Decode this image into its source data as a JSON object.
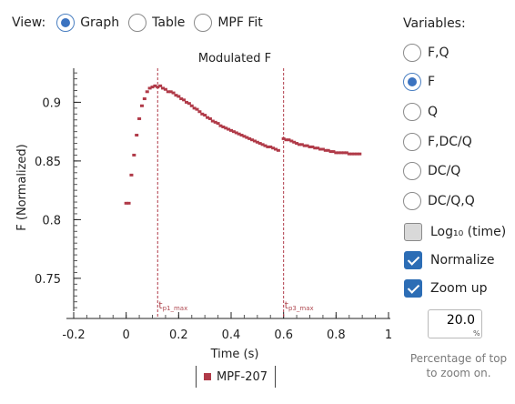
{
  "view": {
    "label": "View:",
    "options": [
      {
        "label": "Graph",
        "selected": true
      },
      {
        "label": "Table",
        "selected": false
      },
      {
        "label": "MPF Fit",
        "selected": false
      }
    ]
  },
  "variables": {
    "title": "Variables:",
    "radios": [
      {
        "label": "F,Q",
        "selected": false
      },
      {
        "label": "F",
        "selected": true
      },
      {
        "label": "Q",
        "selected": false
      },
      {
        "label": "F,DC/Q",
        "selected": false
      },
      {
        "label": "DC/Q",
        "selected": false
      },
      {
        "label": "DC/Q,Q",
        "selected": false
      }
    ],
    "log_label": "Log₁₀ (time)",
    "log_checked": false,
    "normalize_label": "Normalize",
    "normalize_checked": true,
    "zoom_label": "Zoom up",
    "zoom_checked": true,
    "zoom_value": "20.0",
    "zoom_unit": "%",
    "zoom_help": "Percentage of top to zoom on."
  },
  "colors": {
    "series": "#b03a48",
    "marker_line": "#b03a48",
    "accent": "#3b73c0"
  },
  "chart_data": {
    "type": "scatter",
    "title": "Modulated F",
    "xlabel": "Time (s)",
    "ylabel": "F (Normalized)",
    "xlim": [
      -0.2,
      1.0
    ],
    "ylim": [
      0.722,
      0.929
    ],
    "x_ticks": [
      -0.2,
      0,
      0.2,
      0.4,
      0.6,
      0.8,
      1
    ],
    "x_tick_labels": [
      "-0.2",
      "0",
      "0.2",
      "0.4",
      "0.6",
      "0.8",
      "1"
    ],
    "y_ticks": [
      0.75,
      0.8,
      0.85,
      0.9
    ],
    "y_tick_labels": [
      "0.75",
      "0.8",
      "0.85",
      "0.9"
    ],
    "markers": [
      {
        "x": 0.12,
        "label_main": "t",
        "label_sub": "p1_max"
      },
      {
        "x": 0.6,
        "label_main": "t",
        "label_sub": "p3_max"
      }
    ],
    "series": [
      {
        "name": "MPF-207",
        "x": [
          0.0,
          0.01,
          0.02,
          0.03,
          0.04,
          0.05,
          0.06,
          0.07,
          0.08,
          0.09,
          0.1,
          0.11,
          0.12,
          0.13,
          0.14,
          0.15,
          0.16,
          0.17,
          0.18,
          0.19,
          0.2,
          0.21,
          0.22,
          0.23,
          0.24,
          0.25,
          0.26,
          0.27,
          0.28,
          0.29,
          0.3,
          0.31,
          0.32,
          0.33,
          0.34,
          0.35,
          0.36,
          0.37,
          0.38,
          0.39,
          0.4,
          0.41,
          0.42,
          0.43,
          0.44,
          0.45,
          0.46,
          0.47,
          0.48,
          0.49,
          0.5,
          0.51,
          0.52,
          0.53,
          0.54,
          0.55,
          0.56,
          0.57,
          0.58,
          0.6,
          0.61,
          0.62,
          0.63,
          0.64,
          0.65,
          0.66,
          0.67,
          0.68,
          0.69,
          0.7,
          0.71,
          0.72,
          0.73,
          0.74,
          0.75,
          0.76,
          0.77,
          0.78,
          0.79,
          0.8,
          0.81,
          0.82,
          0.83,
          0.84,
          0.85,
          0.86,
          0.87,
          0.88,
          0.89
        ],
        "y": [
          0.814,
          0.814,
          0.838,
          0.855,
          0.872,
          0.886,
          0.897,
          0.903,
          0.909,
          0.912,
          0.913,
          0.914,
          0.913,
          0.914,
          0.912,
          0.911,
          0.909,
          0.909,
          0.908,
          0.906,
          0.905,
          0.903,
          0.902,
          0.9,
          0.899,
          0.897,
          0.895,
          0.894,
          0.892,
          0.89,
          0.889,
          0.887,
          0.886,
          0.884,
          0.883,
          0.882,
          0.88,
          0.879,
          0.878,
          0.877,
          0.876,
          0.875,
          0.874,
          0.873,
          0.872,
          0.871,
          0.87,
          0.869,
          0.868,
          0.867,
          0.866,
          0.865,
          0.864,
          0.863,
          0.862,
          0.862,
          0.861,
          0.86,
          0.859,
          0.869,
          0.868,
          0.868,
          0.867,
          0.866,
          0.865,
          0.864,
          0.864,
          0.863,
          0.863,
          0.862,
          0.862,
          0.861,
          0.861,
          0.86,
          0.86,
          0.859,
          0.859,
          0.858,
          0.858,
          0.857,
          0.857,
          0.857,
          0.857,
          0.857,
          0.856,
          0.856,
          0.856,
          0.856,
          0.856
        ]
      }
    ]
  }
}
